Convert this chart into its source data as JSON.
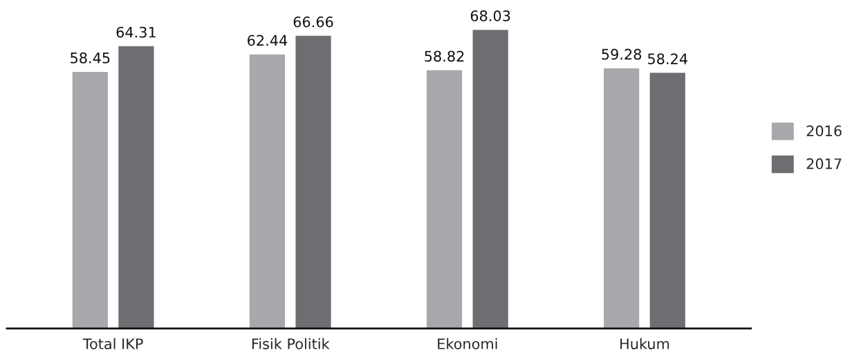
{
  "chart_data": {
    "type": "bar",
    "categories": [
      "Total IKP",
      "Fisik Politik",
      "Ekonomi",
      "Hukum"
    ],
    "series": [
      {
        "name": "2016",
        "color": "#a7a8ab",
        "values": [
          58.45,
          62.44,
          58.82,
          59.28
        ]
      },
      {
        "name": "2017",
        "color": "#6d6e71",
        "values": [
          64.31,
          66.66,
          68.03,
          58.24
        ]
      }
    ],
    "data_labels": true,
    "legend": "right",
    "grid": false,
    "tick_labels": "x"
  }
}
